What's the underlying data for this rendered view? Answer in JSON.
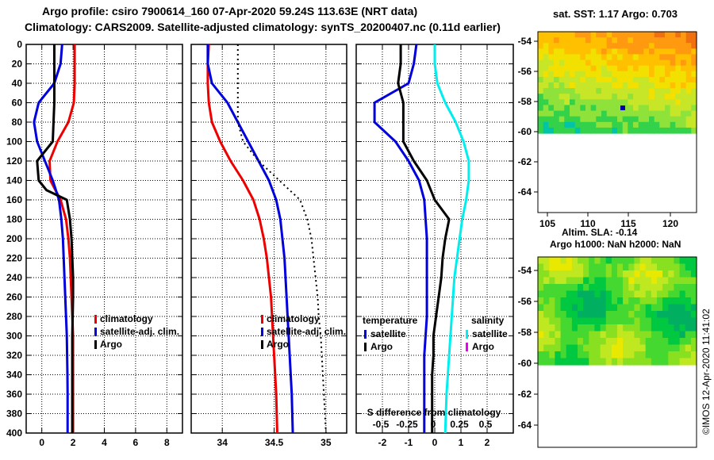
{
  "header": {
    "line1": "Argo profile: csiro 7900614_160 07-Apr-2020 59.24S 113.63E (NRT data)",
    "line2": "Climatology: CARS2009. Satellite-adjusted climatology: synTS_20200407.nc (0.11d earlier)"
  },
  "colors": {
    "climatology": "#ee0000",
    "satellite": "#0000dd",
    "argo": "#000000",
    "salinity_sat": "#00eeee",
    "salinity_argo": "#ee00ee"
  },
  "chart_data": [
    {
      "type": "line",
      "panel": "temperature",
      "y_ticks": [
        0,
        20,
        40,
        60,
        80,
        100,
        120,
        140,
        160,
        180,
        200,
        220,
        240,
        260,
        280,
        300,
        320,
        340,
        360,
        380,
        400
      ],
      "ylim": [
        0,
        400
      ],
      "x_ticks": [
        0,
        2,
        4,
        6,
        8
      ],
      "xlim": [
        -1,
        9
      ],
      "legend": [
        "climatology",
        "satellite-adj. clim.",
        "Argo"
      ],
      "series": [
        {
          "name": "climatology",
          "color": "red",
          "x": [
            2.1,
            2.1,
            2.1,
            2.05,
            1.7,
            1.0,
            0.5,
            0.55,
            1.2,
            1.55,
            1.7,
            1.8,
            1.85,
            1.9,
            1.95,
            2.0,
            2.0,
            2.0,
            2.0,
            2.0
          ],
          "y": [
            0,
            20,
            40,
            60,
            80,
            100,
            120,
            140,
            160,
            180,
            200,
            220,
            240,
            260,
            280,
            300,
            320,
            340,
            360,
            400
          ]
        },
        {
          "name": "satellite-adj. clim.",
          "color": "blue",
          "x": [
            1.3,
            1.2,
            0.8,
            -0.2,
            -0.5,
            -0.3,
            0.2,
            0.7,
            1.1,
            1.25,
            1.35,
            1.4,
            1.45,
            1.5,
            1.55,
            1.6,
            1.62,
            1.64,
            1.65,
            1.65
          ],
          "y": [
            0,
            20,
            40,
            60,
            80,
            100,
            120,
            140,
            160,
            180,
            200,
            220,
            240,
            260,
            280,
            300,
            320,
            340,
            360,
            400
          ]
        },
        {
          "name": "Argo",
          "color": "black",
          "x": [
            0.8,
            0.8,
            0.8,
            0.8,
            0.75,
            0.7,
            -0.3,
            -0.2,
            0.3,
            1.6,
            1.8,
            1.9,
            1.95,
            2.0,
            2.0,
            1.95,
            1.95,
            1.95,
            1.95,
            1.95
          ],
          "y": [
            0,
            20,
            40,
            60,
            80,
            100,
            120,
            140,
            150,
            160,
            180,
            200,
            220,
            240,
            260,
            300,
            320,
            340,
            360,
            400
          ]
        }
      ]
    },
    {
      "type": "line",
      "panel": "salinity",
      "x_ticks": [
        34,
        34.5,
        35
      ],
      "xlim": [
        33.7,
        35.2
      ],
      "legend": [
        "climatology",
        "satellite-adj. clim.",
        "Argo"
      ],
      "series": [
        {
          "name": "climatology",
          "color": "red",
          "x": [
            33.87,
            33.86,
            33.86,
            33.87,
            33.9,
            33.98,
            34.08,
            34.2,
            34.3,
            34.36,
            34.4,
            34.43,
            34.45,
            34.47,
            34.48,
            34.49,
            34.5,
            34.51,
            34.52,
            34.53
          ],
          "y": [
            0,
            20,
            40,
            60,
            80,
            100,
            120,
            140,
            160,
            180,
            200,
            220,
            240,
            260,
            280,
            300,
            320,
            340,
            360,
            400
          ]
        },
        {
          "name": "satellite-adj. clim.",
          "color": "blue",
          "x": [
            33.86,
            33.86,
            33.9,
            34.05,
            34.15,
            34.25,
            34.35,
            34.45,
            34.52,
            34.56,
            34.58,
            34.6,
            34.61,
            34.62,
            34.63,
            34.64,
            34.65,
            34.66,
            34.67,
            34.68
          ],
          "y": [
            0,
            20,
            40,
            60,
            80,
            100,
            120,
            140,
            160,
            180,
            200,
            220,
            240,
            260,
            280,
            300,
            320,
            340,
            360,
            400
          ]
        },
        {
          "name": "Argo",
          "color": "black",
          "x": [
            34.15,
            34.15,
            34.15,
            34.15,
            34.15,
            34.2,
            34.35,
            34.55,
            34.75,
            34.82,
            34.86,
            34.88,
            34.9,
            34.92,
            34.93,
            34.95,
            34.96,
            34.97,
            34.98,
            35.0
          ],
          "y": [
            0,
            20,
            40,
            60,
            80,
            100,
            120,
            140,
            160,
            180,
            200,
            220,
            240,
            260,
            280,
            300,
            320,
            340,
            360,
            400
          ]
        }
      ]
    },
    {
      "type": "line",
      "panel": "difference",
      "x_ticks_bottom": [
        -2,
        -1,
        0,
        1,
        2
      ],
      "x_ticks_salinity": [
        -0.5,
        -0.25,
        0,
        0.25,
        0.5
      ],
      "xlim": [
        -3,
        3
      ],
      "xlabel": "S difference from climatology",
      "legend_temperature": {
        "title": "temperature",
        "items": [
          "satellite",
          "Argo"
        ]
      },
      "legend_salinity": {
        "title": "salinity",
        "items": [
          "satellite",
          "Argo"
        ]
      },
      "series": [
        {
          "name": "temperature satellite",
          "color": "blue",
          "x": [
            -0.7,
            -0.8,
            -1.0,
            -2.3,
            -2.3,
            -1.5,
            -1.0,
            -0.6,
            -0.4,
            -0.35,
            -0.3,
            -0.3,
            -0.3,
            -0.3,
            -0.3,
            -0.35,
            -0.4,
            -0.4,
            -0.4,
            -0.4
          ],
          "y": [
            0,
            20,
            40,
            60,
            80,
            100,
            120,
            140,
            160,
            180,
            200,
            220,
            240,
            260,
            280,
            300,
            320,
            340,
            360,
            400
          ]
        },
        {
          "name": "temperature Argo",
          "color": "black",
          "x": [
            -1.3,
            -1.3,
            -1.4,
            -1.2,
            -1.2,
            -1.2,
            -0.8,
            -0.3,
            0.0,
            0.55,
            0.4,
            0.3,
            0.25,
            0.15,
            0.05,
            -0.05,
            -0.05,
            -0.1,
            -0.1,
            -0.1
          ],
          "y": [
            0,
            20,
            40,
            60,
            80,
            100,
            120,
            140,
            160,
            180,
            200,
            220,
            240,
            260,
            280,
            300,
            320,
            340,
            360,
            400
          ]
        },
        {
          "name": "salinity satellite",
          "color": "cyan",
          "x": [
            0.0,
            0.0,
            0.1,
            0.4,
            0.8,
            1.1,
            1.3,
            1.3,
            1.2,
            1.05,
            0.95,
            0.85,
            0.75,
            0.7,
            0.65,
            0.6,
            0.55,
            0.5,
            0.45,
            0.4
          ],
          "y": [
            0,
            20,
            40,
            60,
            80,
            100,
            120,
            140,
            160,
            180,
            200,
            220,
            240,
            260,
            280,
            300,
            320,
            340,
            360,
            400
          ]
        }
      ]
    }
  ],
  "sst_map": {
    "title": "sat. SST: 1.17 Argo: 0.703",
    "lat_ticks": [
      "-54",
      "-56",
      "-58",
      "-60",
      "-62",
      "-64"
    ],
    "lon_ticks": [
      "105",
      "110",
      "115",
      "120"
    ]
  },
  "sla_map": {
    "title1": "Altim. SLA: -0.14",
    "title2": "Argo h1000: NaN h2000: NaN",
    "lat_ticks": [
      "-54",
      "-56",
      "-58",
      "-60",
      "-62",
      "-64"
    ]
  },
  "credit": "©IMOS 12-Apr-2020 11:41:02"
}
